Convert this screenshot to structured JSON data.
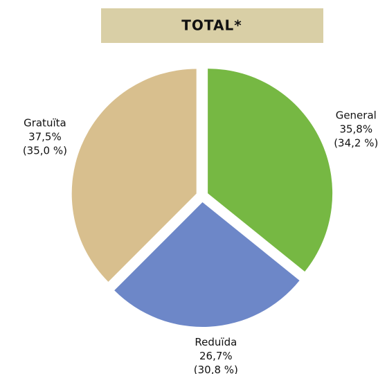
{
  "chart_data": {
    "type": "pie",
    "title": "TOTAL*",
    "categories": [
      "General",
      "Reduïda",
      "Gratuïta"
    ],
    "values": [
      35.8,
      26.7,
      37.5
    ],
    "value_labels": [
      "35,8%",
      "26,7%",
      "37,5%"
    ],
    "previous_values": [
      34.2,
      30.8,
      35.0
    ],
    "previous_value_labels": [
      "(34,2 %)",
      "(30,8 %)",
      "(35,0 %)"
    ],
    "colors": [
      "#76b843",
      "#6d87c8",
      "#d8bf8e"
    ]
  }
}
